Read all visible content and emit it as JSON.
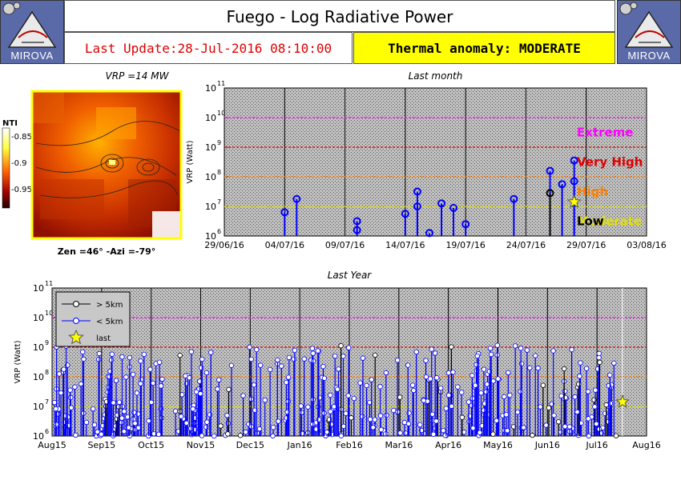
{
  "header": {
    "title": "Fuego - Log Radiative Power",
    "last_update": "Last Update:28-Jul-2016 08:10:00",
    "thermal_anomaly": "Thermal anomaly:  MODERATE",
    "logo_text": "MIROVA"
  },
  "thumbnail": {
    "title": "VRP =14 MW",
    "caption": "Zen =46° -Azi =-79°",
    "colorbar_label": "NTI",
    "colorbar_ticks": [
      "-0.85",
      "-0.9",
      "-0.95"
    ]
  },
  "colors": {
    "extreme": "#ff00ff",
    "very_high": "#e00000",
    "high": "#ff8000",
    "moderate": "#e0e000",
    "low": "#000000",
    "near": "#0000ff",
    "far": "#000000",
    "panel_bg": "#c0c0c0"
  },
  "chart_data": [
    {
      "type": "scatter",
      "title": "Last month",
      "ylabel": "VRP (Watt)",
      "yscale": "log",
      "ylim_exp": [
        6,
        11
      ],
      "x_ticks": [
        "29/06/16",
        "04/07/16",
        "09/07/16",
        "14/07/16",
        "19/07/16",
        "24/07/16",
        "29/07/16",
        "03/08/16"
      ],
      "levels": [
        {
          "name": "Extreme",
          "exp": 10
        },
        {
          "name": "Very High",
          "exp": 9
        },
        {
          "name": "High",
          "exp": 8
        },
        {
          "name": "Moderate",
          "exp": 7
        },
        {
          "name": "Low",
          "exp": null
        }
      ],
      "series": [
        {
          "name": "< 5km",
          "points": [
            [
              "2016-07-04",
              6.8
            ],
            [
              "2016-07-05",
              7.25
            ],
            [
              "2016-07-10",
              6.5
            ],
            [
              "2016-07-10",
              6.2
            ],
            [
              "2016-07-14",
              6.75
            ],
            [
              "2016-07-15",
              7.0
            ],
            [
              "2016-07-15",
              7.5
            ],
            [
              "2016-07-16",
              6.1
            ],
            [
              "2016-07-17",
              7.1
            ],
            [
              "2016-07-18",
              6.95
            ],
            [
              "2016-07-19",
              6.4
            ],
            [
              "2016-07-23",
              7.25
            ],
            [
              "2016-07-26",
              8.2
            ],
            [
              "2016-07-27",
              7.75
            ],
            [
              "2016-07-28",
              8.55
            ],
            [
              "2016-07-28",
              7.85
            ]
          ]
        },
        {
          "name": "> 5km",
          "points": [
            [
              "2016-07-26",
              7.45
            ]
          ]
        },
        {
          "name": "last",
          "points": [
            [
              "2016-07-28",
              7.15
            ]
          ]
        }
      ]
    },
    {
      "type": "scatter",
      "title": "Last Year",
      "ylabel": "VRP (Watt)",
      "yscale": "log",
      "ylim_exp": [
        6,
        11
      ],
      "x_ticks": [
        "Aug15",
        "Sep15",
        "Oct15",
        "Nov15",
        "Dec15",
        "Jan16",
        "Feb16",
        "Mar16",
        "Apr16",
        "May16",
        "Jun16",
        "Jul16",
        "Aug16"
      ],
      "legend": [
        "> 5km",
        "< 5km",
        "last"
      ],
      "last_point": {
        "x": "2016-07-28",
        "exp": 7.15
      }
    }
  ]
}
